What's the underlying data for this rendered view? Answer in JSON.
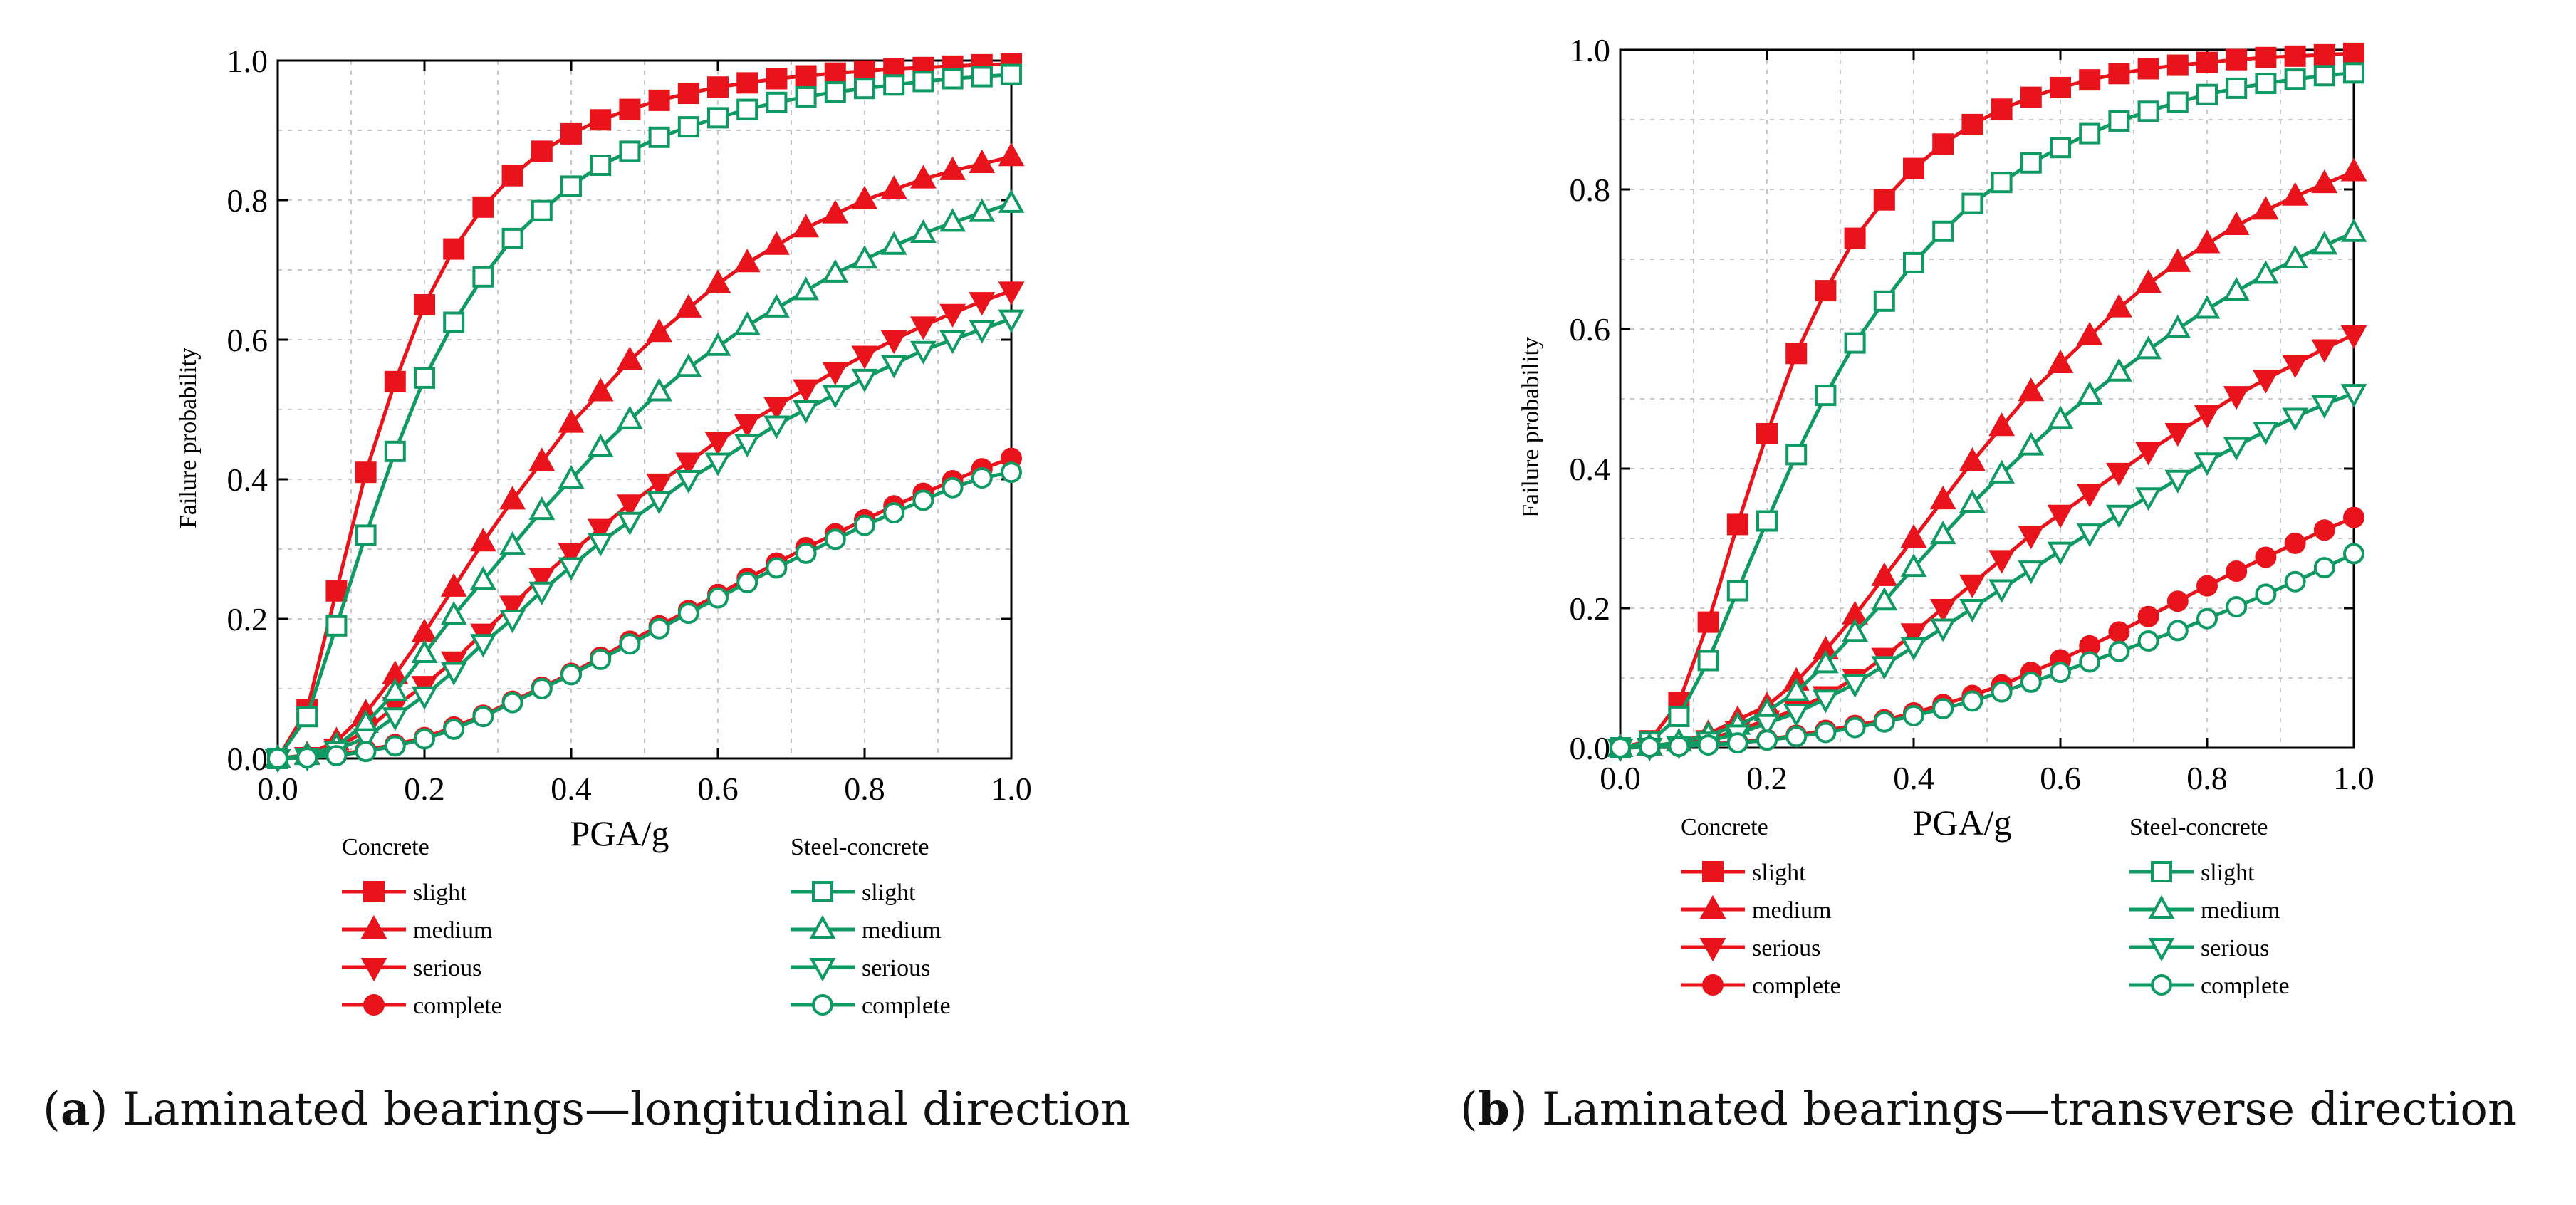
{
  "colors": {
    "concrete": "#e8131b",
    "steel": "#0f9a63",
    "axis": "#000000",
    "grid": "#c8c8c8"
  },
  "legend": {
    "concrete_title": "Concrete",
    "steel_title": "Steel-concrete",
    "labels": [
      "slight",
      "medium",
      "serious",
      "complete"
    ]
  },
  "captions": [
    {
      "letter": "a",
      "text": "Laminated bearings—longitudinal direction"
    },
    {
      "letter": "b",
      "text": "Laminated bearings—transverse direction"
    }
  ],
  "chart_data": [
    {
      "type": "line",
      "panel": "a",
      "xlabel": "PGA/g",
      "ylabel": "Failure probability",
      "xlim": [
        0,
        1
      ],
      "ylim": [
        0,
        1
      ],
      "xticks": [
        "0.0",
        "0.2",
        "0.4",
        "0.6",
        "0.8",
        "1.0"
      ],
      "yticks": [
        "0.0",
        "0.2",
        "0.4",
        "0.6",
        "0.8",
        "1.0"
      ],
      "x": [
        0.0,
        0.04,
        0.08,
        0.12,
        0.16,
        0.2,
        0.24,
        0.28,
        0.32,
        0.36,
        0.4,
        0.44,
        0.48,
        0.52,
        0.56,
        0.6,
        0.64,
        0.68,
        0.72,
        0.76,
        0.8,
        0.84,
        0.88,
        0.92,
        0.96,
        1.0
      ],
      "series": [
        {
          "name": "Concrete slight",
          "group": "concrete",
          "marker": "square",
          "values": [
            0.0,
            0.07,
            0.24,
            0.41,
            0.54,
            0.65,
            0.73,
            0.79,
            0.835,
            0.87,
            0.895,
            0.915,
            0.93,
            0.943,
            0.953,
            0.962,
            0.968,
            0.974,
            0.978,
            0.982,
            0.985,
            0.988,
            0.99,
            0.992,
            0.994,
            0.995
          ]
        },
        {
          "name": "Concrete medium",
          "group": "concrete",
          "marker": "triangle-up",
          "values": [
            0.0,
            0.005,
            0.025,
            0.065,
            0.12,
            0.18,
            0.245,
            0.31,
            0.37,
            0.425,
            0.48,
            0.525,
            0.57,
            0.61,
            0.645,
            0.68,
            0.71,
            0.735,
            0.76,
            0.78,
            0.8,
            0.815,
            0.83,
            0.842,
            0.852,
            0.862
          ]
        },
        {
          "name": "Concrete serious",
          "group": "concrete",
          "marker": "triangle-down",
          "values": [
            0.0,
            0.003,
            0.015,
            0.04,
            0.075,
            0.105,
            0.14,
            0.18,
            0.22,
            0.26,
            0.295,
            0.33,
            0.365,
            0.395,
            0.425,
            0.455,
            0.48,
            0.505,
            0.53,
            0.555,
            0.578,
            0.6,
            0.62,
            0.638,
            0.655,
            0.67
          ]
        },
        {
          "name": "Concrete complete",
          "group": "concrete",
          "marker": "circle",
          "values": [
            0.0,
            0.002,
            0.005,
            0.012,
            0.02,
            0.03,
            0.045,
            0.062,
            0.082,
            0.102,
            0.122,
            0.145,
            0.168,
            0.19,
            0.212,
            0.235,
            0.258,
            0.28,
            0.302,
            0.322,
            0.342,
            0.362,
            0.38,
            0.398,
            0.415,
            0.43
          ]
        },
        {
          "name": "Steel-concrete slight",
          "group": "steel",
          "marker": "square",
          "values": [
            0.0,
            0.06,
            0.19,
            0.32,
            0.44,
            0.545,
            0.625,
            0.69,
            0.745,
            0.785,
            0.82,
            0.85,
            0.87,
            0.89,
            0.905,
            0.918,
            0.93,
            0.94,
            0.948,
            0.955,
            0.96,
            0.965,
            0.97,
            0.974,
            0.977,
            0.98
          ]
        },
        {
          "name": "Steel-concrete medium",
          "group": "steel",
          "marker": "triangle-up",
          "values": [
            0.0,
            0.004,
            0.018,
            0.05,
            0.095,
            0.15,
            0.205,
            0.255,
            0.305,
            0.355,
            0.4,
            0.445,
            0.485,
            0.525,
            0.56,
            0.59,
            0.62,
            0.645,
            0.67,
            0.695,
            0.715,
            0.735,
            0.752,
            0.768,
            0.782,
            0.795
          ]
        },
        {
          "name": "Steel-concrete serious",
          "group": "steel",
          "marker": "triangle-down",
          "values": [
            0.0,
            0.002,
            0.012,
            0.03,
            0.06,
            0.09,
            0.125,
            0.165,
            0.2,
            0.24,
            0.275,
            0.31,
            0.34,
            0.37,
            0.4,
            0.425,
            0.452,
            0.478,
            0.5,
            0.522,
            0.545,
            0.565,
            0.585,
            0.6,
            0.615,
            0.63
          ]
        },
        {
          "name": "Steel-concrete complete",
          "group": "steel",
          "marker": "circle",
          "values": [
            0.0,
            0.001,
            0.004,
            0.01,
            0.018,
            0.028,
            0.042,
            0.06,
            0.08,
            0.1,
            0.12,
            0.142,
            0.164,
            0.186,
            0.208,
            0.23,
            0.252,
            0.273,
            0.294,
            0.314,
            0.334,
            0.352,
            0.37,
            0.388,
            0.402,
            0.41
          ]
        }
      ]
    },
    {
      "type": "line",
      "panel": "b",
      "xlabel": "PGA/g",
      "ylabel": "Failure probability",
      "xlim": [
        0,
        1
      ],
      "ylim": [
        0,
        1
      ],
      "xticks": [
        "0.0",
        "0.2",
        "0.4",
        "0.6",
        "0.8",
        "1.0"
      ],
      "yticks": [
        "0.0",
        "0.2",
        "0.4",
        "0.6",
        "0.8",
        "1.0"
      ],
      "x": [
        0.0,
        0.04,
        0.08,
        0.12,
        0.16,
        0.2,
        0.24,
        0.28,
        0.32,
        0.36,
        0.4,
        0.44,
        0.48,
        0.52,
        0.56,
        0.6,
        0.64,
        0.68,
        0.72,
        0.76,
        0.8,
        0.84,
        0.88,
        0.92,
        0.96,
        1.0
      ],
      "series": [
        {
          "name": "Concrete slight",
          "group": "concrete",
          "marker": "square",
          "values": [
            0.0,
            0.01,
            0.065,
            0.18,
            0.32,
            0.45,
            0.565,
            0.655,
            0.73,
            0.785,
            0.83,
            0.865,
            0.893,
            0.915,
            0.932,
            0.946,
            0.957,
            0.966,
            0.973,
            0.978,
            0.982,
            0.986,
            0.989,
            0.991,
            0.993,
            0.995
          ]
        },
        {
          "name": "Concrete medium",
          "group": "concrete",
          "marker": "triangle-up",
          "values": [
            0.0,
            0.002,
            0.008,
            0.02,
            0.04,
            0.06,
            0.095,
            0.14,
            0.19,
            0.245,
            0.3,
            0.355,
            0.41,
            0.46,
            0.51,
            0.55,
            0.59,
            0.63,
            0.665,
            0.695,
            0.722,
            0.748,
            0.77,
            0.79,
            0.808,
            0.825
          ]
        },
        {
          "name": "Concrete serious",
          "group": "concrete",
          "marker": "triangle-down",
          "values": [
            0.0,
            0.001,
            0.004,
            0.012,
            0.025,
            0.04,
            0.055,
            0.075,
            0.1,
            0.13,
            0.165,
            0.2,
            0.235,
            0.27,
            0.305,
            0.335,
            0.365,
            0.395,
            0.425,
            0.452,
            0.478,
            0.505,
            0.528,
            0.55,
            0.572,
            0.592
          ]
        },
        {
          "name": "Concrete complete",
          "group": "concrete",
          "marker": "circle",
          "values": [
            0.0,
            0.001,
            0.002,
            0.005,
            0.008,
            0.012,
            0.018,
            0.025,
            0.032,
            0.04,
            0.05,
            0.062,
            0.075,
            0.09,
            0.108,
            0.126,
            0.146,
            0.166,
            0.188,
            0.21,
            0.232,
            0.253,
            0.273,
            0.293,
            0.312,
            0.33
          ]
        },
        {
          "name": "Steel-concrete slight",
          "group": "steel",
          "marker": "square",
          "values": [
            0.0,
            0.008,
            0.045,
            0.125,
            0.225,
            0.325,
            0.42,
            0.505,
            0.58,
            0.64,
            0.695,
            0.74,
            0.78,
            0.81,
            0.838,
            0.86,
            0.88,
            0.898,
            0.912,
            0.925,
            0.936,
            0.945,
            0.952,
            0.958,
            0.963,
            0.967
          ]
        },
        {
          "name": "Steel-concrete medium",
          "group": "steel",
          "marker": "triangle-up",
          "values": [
            0.0,
            0.002,
            0.008,
            0.018,
            0.032,
            0.052,
            0.08,
            0.12,
            0.165,
            0.21,
            0.258,
            0.305,
            0.35,
            0.392,
            0.432,
            0.47,
            0.505,
            0.538,
            0.57,
            0.6,
            0.628,
            0.654,
            0.678,
            0.7,
            0.72,
            0.738
          ]
        },
        {
          "name": "Steel-concrete serious",
          "group": "steel",
          "marker": "triangle-down",
          "values": [
            0.0,
            0.001,
            0.004,
            0.01,
            0.02,
            0.035,
            0.05,
            0.07,
            0.092,
            0.118,
            0.145,
            0.172,
            0.2,
            0.228,
            0.255,
            0.282,
            0.308,
            0.335,
            0.36,
            0.385,
            0.41,
            0.432,
            0.454,
            0.474,
            0.492,
            0.508
          ]
        },
        {
          "name": "Steel-concrete complete",
          "group": "steel",
          "marker": "circle",
          "values": [
            0.0,
            0.001,
            0.002,
            0.004,
            0.007,
            0.011,
            0.016,
            0.022,
            0.029,
            0.037,
            0.046,
            0.056,
            0.067,
            0.08,
            0.094,
            0.108,
            0.123,
            0.138,
            0.153,
            0.168,
            0.185,
            0.202,
            0.22,
            0.238,
            0.258,
            0.278
          ]
        }
      ]
    }
  ]
}
